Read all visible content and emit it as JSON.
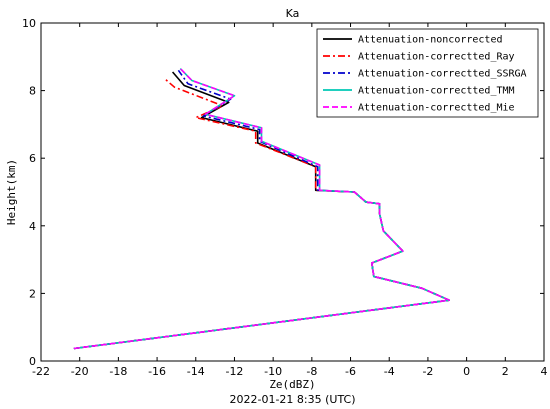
{
  "chart_data": {
    "type": "line",
    "title": "Ka",
    "xlabel": "Ze(dBZ)",
    "ylabel": "Height(km)",
    "caption": "2022-01-21 8:35 (UTC)",
    "xlim": [
      -22,
      4
    ],
    "ylim": [
      0,
      10
    ],
    "xticks": [
      "-22",
      "-20",
      "-18",
      "-16",
      "-14",
      "-12",
      "-10",
      "-8",
      "-6",
      "-4",
      "-2",
      "0",
      "2",
      "4"
    ],
    "yticks": [
      "0",
      "2",
      "4",
      "6",
      "8",
      "10"
    ],
    "grid": false,
    "legend_position": "top-right",
    "series": [
      {
        "name": "Attenuation-noncorrected",
        "color": "#000000",
        "dash": "solid",
        "x": [
          -20.3,
          -0.9,
          -2.3,
          -4.8,
          -4.9,
          -3.3,
          -4.3,
          -4.5,
          -4.5,
          -5.2,
          -5.8,
          -7.8,
          -7.8,
          -10.8,
          -10.8,
          -13.7,
          -12.3,
          -14.6,
          -15.2
        ],
        "y": [
          0.37,
          1.8,
          2.15,
          2.5,
          2.9,
          3.25,
          3.85,
          4.35,
          4.65,
          4.7,
          5.0,
          5.05,
          5.75,
          6.45,
          6.8,
          7.2,
          7.65,
          8.15,
          8.55
        ]
      },
      {
        "name": "Attenuation-correctted_Ray",
        "color": "#ff0000",
        "dash": "dashdot",
        "x": [
          -20.3,
          -0.9,
          -2.3,
          -4.8,
          -4.9,
          -3.3,
          -4.3,
          -4.5,
          -4.5,
          -5.2,
          -5.8,
          -7.8,
          -7.8,
          -10.9,
          -10.9,
          -14.0,
          -12.6,
          -15.1,
          -15.6
        ],
        "y": [
          0.37,
          1.8,
          2.15,
          2.5,
          2.9,
          3.25,
          3.85,
          4.35,
          4.65,
          4.7,
          5.0,
          5.05,
          5.75,
          6.45,
          6.8,
          7.2,
          7.55,
          8.1,
          8.35
        ]
      },
      {
        "name": "Attenuation-correctted_SSRGA",
        "color": "#0000cc",
        "dash": "dashdot",
        "x": [
          -20.3,
          -0.9,
          -2.3,
          -4.8,
          -4.9,
          -3.3,
          -4.3,
          -4.5,
          -4.5,
          -5.2,
          -5.8,
          -7.7,
          -7.7,
          -10.7,
          -10.7,
          -13.6,
          -12.2,
          -14.4,
          -14.9
        ],
        "y": [
          0.37,
          1.8,
          2.15,
          2.5,
          2.9,
          3.25,
          3.85,
          4.35,
          4.65,
          4.7,
          5.0,
          5.05,
          5.75,
          6.5,
          6.85,
          7.25,
          7.75,
          8.2,
          8.6
        ]
      },
      {
        "name": "Attenuation-correctted_TMM",
        "color": "#00c8b4",
        "dash": "solid",
        "x": [
          -20.3,
          -0.9,
          -2.3,
          -4.8,
          -4.9,
          -3.3,
          -4.3,
          -4.5,
          -4.5,
          -5.2,
          -5.8,
          -7.6,
          -7.6,
          -10.6,
          -10.6,
          -13.5,
          -12.0,
          -14.2,
          -14.8
        ],
        "y": [
          0.37,
          1.8,
          2.15,
          2.5,
          2.9,
          3.25,
          3.85,
          4.35,
          4.65,
          4.7,
          5.0,
          5.05,
          5.8,
          6.5,
          6.9,
          7.3,
          7.85,
          8.3,
          8.65
        ]
      },
      {
        "name": "Attenuation-correctted_Mie",
        "color": "#ff00ff",
        "dash": "dashed",
        "x": [
          -20.3,
          -0.9,
          -2.3,
          -4.8,
          -4.9,
          -3.3,
          -4.3,
          -4.5,
          -4.5,
          -5.2,
          -5.8,
          -7.6,
          -7.6,
          -10.6,
          -10.6,
          -13.5,
          -12.0,
          -14.2,
          -14.8
        ],
        "y": [
          0.37,
          1.8,
          2.15,
          2.5,
          2.9,
          3.25,
          3.85,
          4.35,
          4.65,
          4.7,
          5.0,
          5.05,
          5.8,
          6.5,
          6.9,
          7.3,
          7.85,
          8.3,
          8.65
        ]
      }
    ]
  }
}
